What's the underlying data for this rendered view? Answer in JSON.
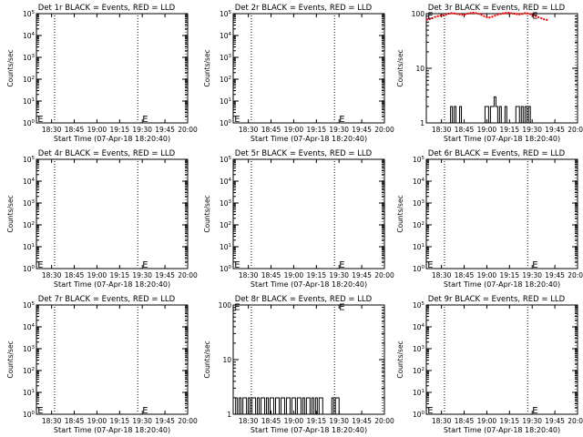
{
  "chart_data": [
    {
      "type": "line",
      "title": "Det 1r BLACK = Events, RED = LLD",
      "xlabel": "Start Time (07-Apr-18 18:20:40)",
      "ylabel": "Counts/sec",
      "yscale": "log",
      "ylim": [
        1,
        100000
      ],
      "ytick_labels": [
        "10^0",
        "10^1",
        "10^2",
        "10^3",
        "10^4",
        "10^5"
      ],
      "xlim": [
        18.333,
        20.0
      ],
      "xtick_labels": [
        "18:30",
        "18:45",
        "19:00",
        "19:15",
        "19:30",
        "19:45",
        "20:00"
      ],
      "vlines": [
        18.533,
        19.45,
        19.98
      ],
      "markers": [
        {
          "label": "E",
          "x": 18.345,
          "y": 1.5
        },
        {
          "label": "E",
          "x": 19.5,
          "y": 1.5
        }
      ],
      "series": []
    },
    {
      "type": "line",
      "title": "Det 2r BLACK = Events, RED = LLD",
      "xlabel": "Start Time (07-Apr-18 18:20:40)",
      "ylabel": "Counts/sec",
      "yscale": "log",
      "ylim": [
        1,
        100000
      ],
      "ytick_labels": [
        "10^0",
        "10^1",
        "10^2",
        "10^3",
        "10^4",
        "10^5"
      ],
      "xlim": [
        18.333,
        20.0
      ],
      "xtick_labels": [
        "18:30",
        "18:45",
        "19:00",
        "19:15",
        "19:30",
        "19:45",
        "20:00"
      ],
      "vlines": [
        18.533,
        19.45,
        19.98
      ],
      "markers": [
        {
          "label": "E",
          "x": 18.345,
          "y": 1.5
        },
        {
          "label": "E",
          "x": 19.5,
          "y": 1.5
        }
      ],
      "series": []
    },
    {
      "type": "line",
      "title": "Det 3r BLACK = Events, RED = LLD",
      "xlabel": "Start Time (07-Apr-18 18:20:40)",
      "ylabel": "Counts/sec",
      "yscale": "log",
      "ylim": [
        1,
        100
      ],
      "ytick_labels": [
        "1",
        "10",
        "100"
      ],
      "xlim": [
        18.333,
        20.0
      ],
      "xtick_labels": [
        "18:30",
        "18:45",
        "19:00",
        "19:15",
        "19:30",
        "19:45",
        "20:00"
      ],
      "vlines": [
        18.533,
        19.45,
        19.98
      ],
      "markers": [
        {
          "label": "E",
          "x": 18.345,
          "y": 90
        },
        {
          "label": "E",
          "x": 19.5,
          "y": 90
        }
      ],
      "series": [
        {
          "color": "#ff0000",
          "style": "points",
          "x": [
            18.34,
            18.37,
            18.4,
            18.43,
            18.46,
            18.49,
            18.52,
            18.55,
            18.58,
            18.61,
            18.64,
            18.67,
            18.7,
            18.73,
            18.76,
            18.79,
            18.82,
            18.85,
            18.88,
            18.91,
            18.94,
            18.97,
            19.0,
            19.03,
            19.06,
            19.09,
            19.12,
            19.15,
            19.18,
            19.21,
            19.24,
            19.27,
            19.3,
            19.33,
            19.36,
            19.39,
            19.42,
            19.45,
            19.48,
            19.51,
            19.54,
            19.57,
            19.6,
            19.63,
            19.66
          ],
          "y": [
            78,
            80,
            83,
            87,
            90,
            92,
            93,
            96,
            100,
            102,
            101,
            99,
            97,
            95,
            97,
            100,
            103,
            104,
            102,
            99,
            95,
            90,
            86,
            85,
            88,
            92,
            96,
            99,
            101,
            103,
            104,
            102,
            100,
            98,
            97,
            99,
            102,
            101,
            98,
            94,
            90,
            86,
            82,
            79,
            77
          ]
        },
        {
          "color": "#000000",
          "style": "histogram",
          "x": [
            18.58,
            18.6,
            18.62,
            18.64,
            18.66,
            18.68,
            18.7,
            18.72,
            18.74,
            18.76,
            18.78,
            18.8,
            18.82,
            18.84,
            18.86,
            18.88,
            18.9,
            18.92,
            18.94,
            18.96,
            18.98,
            19.0,
            19.02,
            19.04,
            19.06,
            19.08,
            19.1,
            19.12,
            19.14,
            19.16,
            19.18,
            19.2,
            19.22,
            19.24,
            19.26,
            19.28,
            19.3,
            19.32,
            19.34,
            19.36,
            19.38,
            19.4,
            19.42,
            19.44,
            19.46,
            19.48,
            19.5
          ],
          "y": [
            1,
            2,
            1,
            2,
            1,
            1,
            2,
            1,
            1,
            1,
            1,
            1,
            1,
            1,
            1,
            1,
            1,
            1,
            1,
            1,
            2,
            2,
            1,
            2,
            2,
            3,
            2,
            1,
            2,
            1,
            1,
            2,
            1,
            1,
            1,
            1,
            1,
            2,
            2,
            1,
            2,
            1,
            2,
            1,
            2,
            1,
            1
          ]
        }
      ]
    },
    {
      "type": "line",
      "title": "Det 4r BLACK = Events, RED = LLD",
      "xlabel": "Start Time (07-Apr-18 18:20:40)",
      "ylabel": "Counts/sec",
      "yscale": "log",
      "ylim": [
        1,
        100000
      ],
      "ytick_labels": [
        "10^0",
        "10^1",
        "10^2",
        "10^3",
        "10^4",
        "10^5"
      ],
      "xlim": [
        18.333,
        20.0
      ],
      "xtick_labels": [
        "18:30",
        "18:45",
        "19:00",
        "19:15",
        "19:30",
        "19:45",
        "20:00"
      ],
      "vlines": [
        18.533,
        19.45,
        19.98
      ],
      "markers": [
        {
          "label": "E",
          "x": 18.345,
          "y": 1.5
        },
        {
          "label": "E",
          "x": 19.5,
          "y": 1.5
        }
      ],
      "series": []
    },
    {
      "type": "line",
      "title": "Det 5r BLACK = Events, RED = LLD",
      "xlabel": "Start Time (07-Apr-18 18:20:40)",
      "ylabel": "Counts/sec",
      "yscale": "log",
      "ylim": [
        1,
        100000
      ],
      "ytick_labels": [
        "10^0",
        "10^1",
        "10^2",
        "10^3",
        "10^4",
        "10^5"
      ],
      "xlim": [
        18.333,
        20.0
      ],
      "xtick_labels": [
        "18:30",
        "18:45",
        "19:00",
        "19:15",
        "19:30",
        "19:45",
        "20:00"
      ],
      "vlines": [
        18.533,
        19.45,
        19.98
      ],
      "markers": [
        {
          "label": "E",
          "x": 18.345,
          "y": 1.5
        },
        {
          "label": "E",
          "x": 19.5,
          "y": 1.5
        }
      ],
      "series": []
    },
    {
      "type": "line",
      "title": "Det 6r BLACK = Events, RED = LLD",
      "xlabel": "Start Time (07-Apr-18 18:20:40)",
      "ylabel": "Counts/sec",
      "yscale": "log",
      "ylim": [
        1,
        100000
      ],
      "ytick_labels": [
        "10^0",
        "10^1",
        "10^2",
        "10^3",
        "10^4",
        "10^5"
      ],
      "xlim": [
        18.333,
        20.0
      ],
      "xtick_labels": [
        "18:30",
        "18:45",
        "19:00",
        "19:15",
        "19:30",
        "19:45",
        "20:00"
      ],
      "vlines": [
        18.533,
        19.45,
        19.98
      ],
      "markers": [
        {
          "label": "E",
          "x": 18.345,
          "y": 1.5
        },
        {
          "label": "E",
          "x": 19.5,
          "y": 1.5
        }
      ],
      "series": []
    },
    {
      "type": "line",
      "title": "Det 7r BLACK = Events, RED = LLD",
      "xlabel": "Start Time (07-Apr-18 18:20:40)",
      "ylabel": "Counts/sec",
      "yscale": "log",
      "ylim": [
        1,
        100000
      ],
      "ytick_labels": [
        "10^0",
        "10^1",
        "10^2",
        "10^3",
        "10^4",
        "10^5"
      ],
      "xlim": [
        18.333,
        20.0
      ],
      "xtick_labels": [
        "18:30",
        "18:45",
        "19:00",
        "19:15",
        "19:30",
        "19:45",
        "20:00"
      ],
      "vlines": [
        18.533,
        19.45,
        19.98
      ],
      "markers": [
        {
          "label": "E",
          "x": 18.345,
          "y": 1.5
        },
        {
          "label": "E",
          "x": 19.5,
          "y": 1.5
        }
      ],
      "series": []
    },
    {
      "type": "line",
      "title": "Det 8r BLACK = Events, RED = LLD",
      "xlabel": "Start Time (07-Apr-18 18:20:40)",
      "ylabel": "Counts/sec",
      "yscale": "log",
      "ylim": [
        1,
        100
      ],
      "ytick_labels": [
        "1",
        "10",
        "100"
      ],
      "xlim": [
        18.333,
        20.0
      ],
      "xtick_labels": [
        "18:30",
        "18:45",
        "19:00",
        "19:15",
        "19:30",
        "19:45",
        "20:00"
      ],
      "vlines": [
        18.533,
        19.45,
        19.98
      ],
      "markers": [
        {
          "label": "E",
          "x": 18.345,
          "y": 90
        },
        {
          "label": "E",
          "x": 19.5,
          "y": 90
        }
      ],
      "series": [
        {
          "color": "#000000",
          "style": "histogram",
          "x": [
            18.34,
            18.36,
            18.38,
            18.4,
            18.42,
            18.44,
            18.46,
            18.48,
            18.5,
            18.52,
            18.54,
            18.56,
            18.58,
            18.6,
            18.62,
            18.64,
            18.66,
            18.68,
            18.7,
            18.72,
            18.74,
            18.76,
            18.78,
            18.8,
            18.82,
            18.84,
            18.86,
            18.88,
            18.9,
            18.92,
            18.94,
            18.96,
            18.98,
            19.0,
            19.02,
            19.04,
            19.06,
            19.08,
            19.1,
            19.12,
            19.14,
            19.16,
            19.18,
            19.2,
            19.22,
            19.24,
            19.26,
            19.28,
            19.3,
            19.32,
            19.34,
            19.36,
            19.38,
            19.4,
            19.42,
            19.44,
            19.46,
            19.48,
            19.5,
            19.52
          ],
          "y": [
            1,
            2,
            1,
            2,
            1,
            2,
            2,
            1,
            2,
            1,
            2,
            2,
            1,
            2,
            1,
            2,
            2,
            1,
            2,
            1,
            2,
            2,
            1,
            2,
            2,
            1,
            2,
            2,
            1,
            2,
            2,
            1,
            2,
            2,
            1,
            2,
            2,
            1,
            2,
            1,
            2,
            2,
            1,
            2,
            1,
            2,
            1,
            2,
            2,
            1,
            1,
            1,
            1,
            1,
            2,
            1,
            2,
            2,
            1,
            1
          ]
        }
      ]
    },
    {
      "type": "line",
      "title": "Det 9r BLACK = Events, RED = LLD",
      "xlabel": "Start Time (07-Apr-18 18:20:40)",
      "ylabel": "Counts/sec",
      "yscale": "log",
      "ylim": [
        1,
        100000
      ],
      "ytick_labels": [
        "10^0",
        "10^1",
        "10^2",
        "10^3",
        "10^4",
        "10^5"
      ],
      "xlim": [
        18.333,
        20.0
      ],
      "xtick_labels": [
        "18:30",
        "18:45",
        "19:00",
        "19:15",
        "19:30",
        "19:45",
        "20:00"
      ],
      "vlines": [
        18.533,
        19.45,
        19.98
      ],
      "markers": [
        {
          "label": "E",
          "x": 18.345,
          "y": 1.5
        },
        {
          "label": "E",
          "x": 19.5,
          "y": 1.5
        }
      ],
      "series": []
    }
  ]
}
